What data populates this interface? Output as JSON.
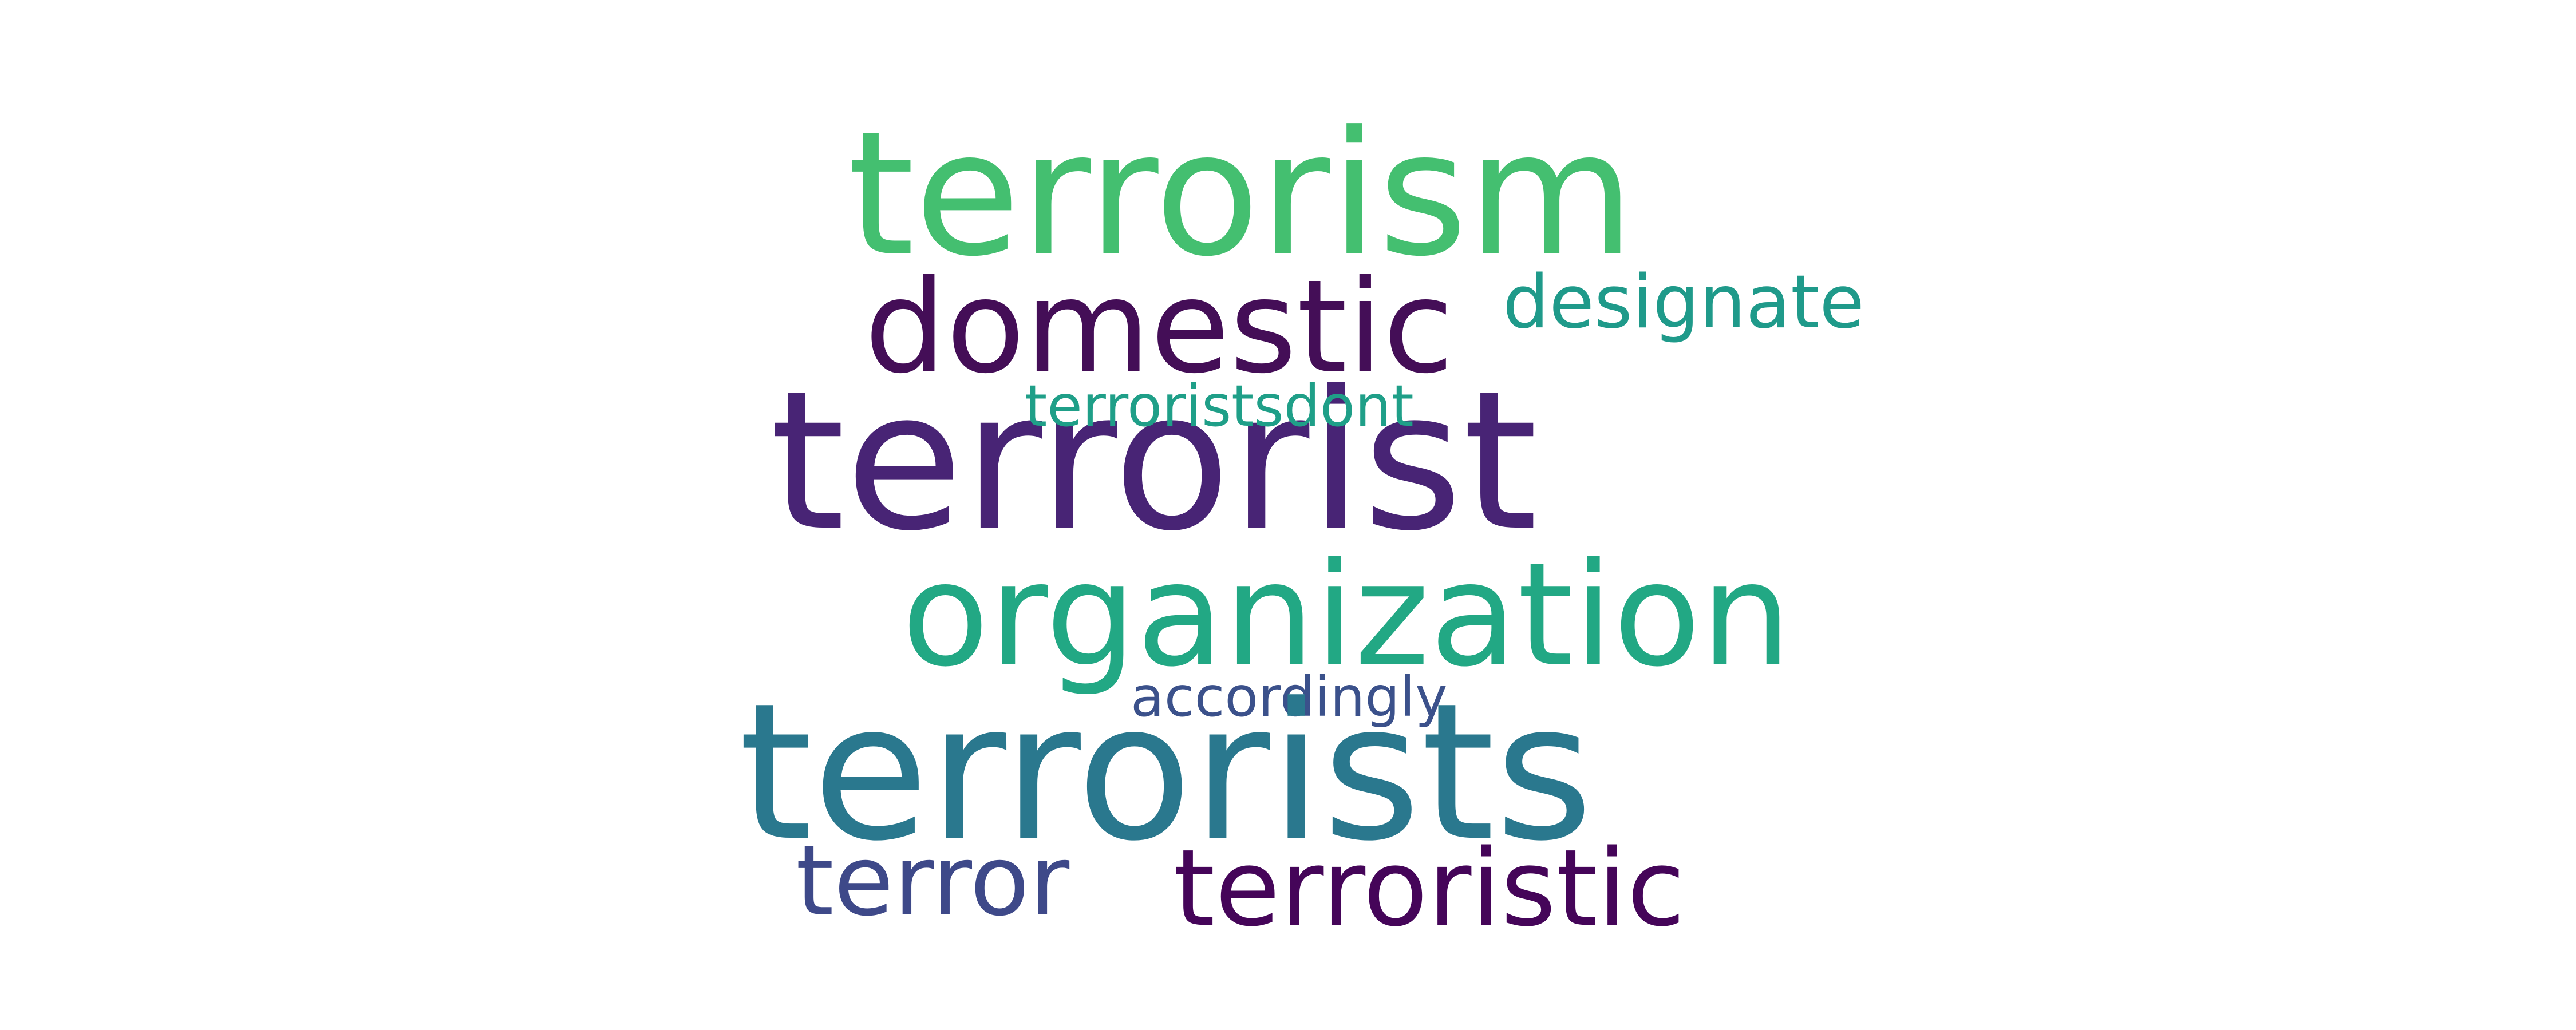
{
  "words": [
    {
      "text": "terrorism",
      "color": "#44bf70"
    },
    {
      "text": "domestic",
      "color": "#440e57"
    },
    {
      "text": "designate",
      "color": "#1f9a8a"
    },
    {
      "text": "terroristsdont",
      "color": "#1f9f88"
    },
    {
      "text": "terrorist",
      "color": "#482475"
    },
    {
      "text": "organization",
      "color": "#22a884"
    },
    {
      "text": "accordingly",
      "color": "#3b518b"
    },
    {
      "text": "terrorists",
      "color": "#2a788e"
    },
    {
      "text": "terror",
      "color": "#3e4989"
    },
    {
      "text": "terroristic",
      "color": "#450559"
    }
  ]
}
